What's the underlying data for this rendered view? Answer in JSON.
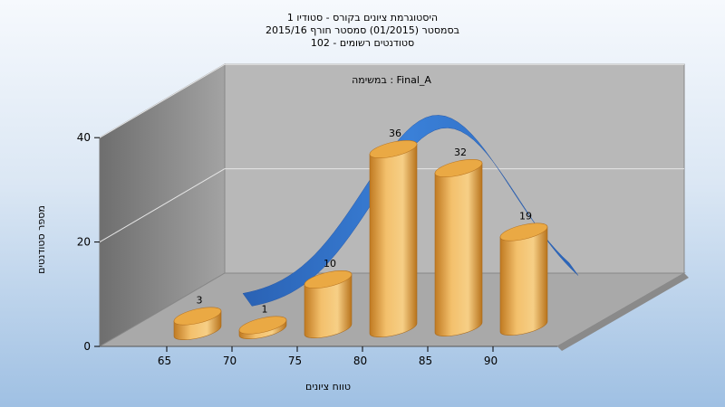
{
  "chart_data": {
    "type": "bar",
    "title_lines": [
      "היסטוגרמת ציונים בקורס - סטודיו 1",
      "בסמסטר  (01/2015)  סמסטר חורף 2015/16",
      "102 - סטודנטים רשומים"
    ],
    "subtitle": "במשימה : Final_A",
    "xlabel": "טווח ציונים",
    "ylabel": "מספר סטודנטים",
    "categories": [
      "65",
      "70",
      "75",
      "80",
      "85",
      "90"
    ],
    "values": [
      3,
      1,
      10,
      36,
      32,
      19
    ],
    "y_ticks": [
      0,
      20,
      40
    ],
    "ylim": [
      0,
      40
    ],
    "curve": "normal-distribution",
    "grid": true,
    "colors": {
      "bar": "#e8a445",
      "curve": "#2f6fc4",
      "back_wall": "#b9b9b9",
      "side_wall": "#8d8d8d",
      "floor": "#a9a9a9"
    }
  }
}
